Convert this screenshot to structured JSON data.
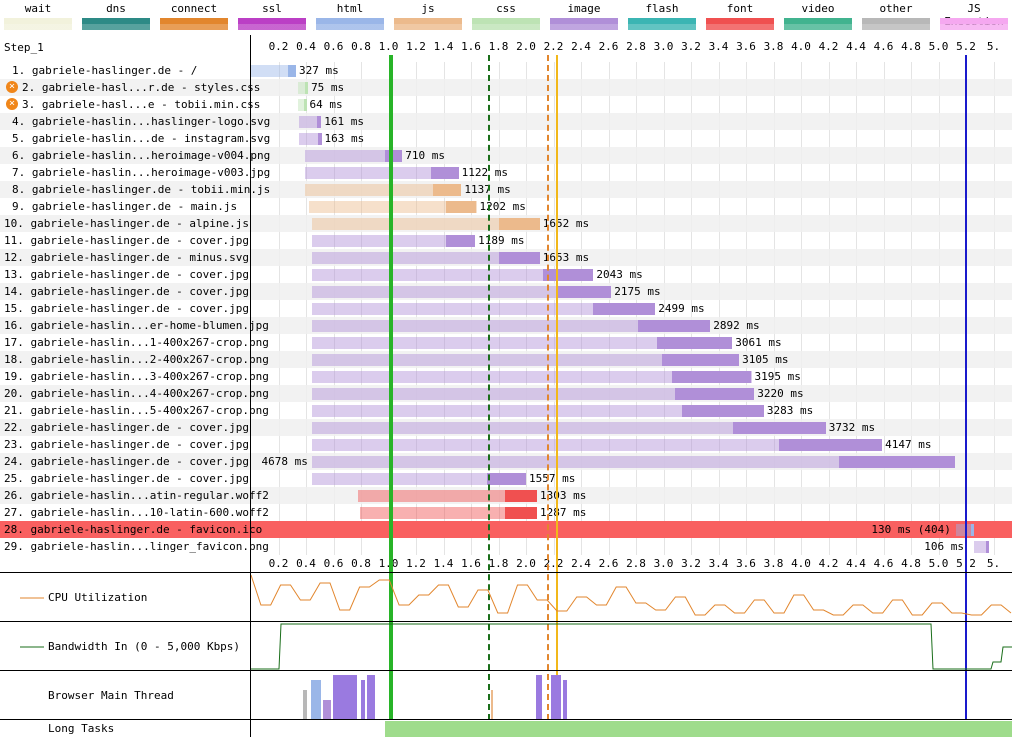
{
  "legend": [
    {
      "label": "wait",
      "color": "#f2f2dc"
    },
    {
      "label": "dns",
      "color": "#2d8a86"
    },
    {
      "label": "connect",
      "color": "#e2862d"
    },
    {
      "label": "ssl",
      "color": "#bb3fc5"
    },
    {
      "label": "html",
      "color": "#9ab6e8"
    },
    {
      "label": "js",
      "color": "#ecba8c"
    },
    {
      "label": "css",
      "color": "#bde3b4"
    },
    {
      "label": "image",
      "color": "#b08fd8"
    },
    {
      "label": "flash",
      "color": "#3bb5b3"
    },
    {
      "label": "font",
      "color": "#f05050"
    },
    {
      "label": "video",
      "color": "#41b38f"
    },
    {
      "label": "other",
      "color": "#b8b8b8"
    },
    {
      "label": "JS Execution",
      "color": "#f5a8f0"
    }
  ],
  "step_label": "Step_1",
  "ticks": [
    "0.2",
    "0.4",
    "0.6",
    "0.8",
    "1.0",
    "1.2",
    "1.4",
    "1.6",
    "1.8",
    "2.0",
    "2.2",
    "2.4",
    "2.6",
    "2.8",
    "3.0",
    "3.2",
    "3.4",
    "3.6",
    "3.8",
    "4.0",
    "4.2",
    "4.4",
    "4.6",
    "4.8",
    "5.0",
    "5.2",
    "5."
  ],
  "requests": [
    {
      "label": "1. gabriele-haslinger.de - /",
      "time": "327 ms",
      "type": "html",
      "start": 0.0,
      "end": 0.327
    },
    {
      "label": "2. gabriele-hasl...r.de - styles.css",
      "time": "75 ms",
      "type": "css",
      "start": 0.34,
      "end": 0.415,
      "error": true
    },
    {
      "label": "3. gabriele-hasl...e - tobii.min.css",
      "time": "64 ms",
      "type": "css",
      "start": 0.34,
      "end": 0.404,
      "error": true
    },
    {
      "label": "4. gabriele-haslin...haslinger-logo.svg",
      "time": "161 ms",
      "type": "image",
      "start": 0.35,
      "end": 0.511
    },
    {
      "label": "5. gabriele-haslin...de - instagram.svg",
      "time": "163 ms",
      "type": "image",
      "start": 0.35,
      "end": 0.513
    },
    {
      "label": "6. gabriele-haslin...heroimage-v004.png",
      "time": "710 ms",
      "type": "image",
      "start": 0.39,
      "end": 1.1
    },
    {
      "label": "7. gabriele-haslin...heroimage-v003.jpg",
      "time": "1122 ms",
      "type": "image",
      "start": 0.39,
      "end": 1.51
    },
    {
      "label": "8. gabriele-haslinger.de - tobii.min.js",
      "time": "1137 ms",
      "type": "js",
      "start": 0.39,
      "end": 1.53
    },
    {
      "label": "9. gabriele-haslinger.de - main.js",
      "time": "1202 ms",
      "type": "js",
      "start": 0.42,
      "end": 1.64
    },
    {
      "label": "10. gabriele-haslinger.de - alpine.js",
      "time": "1652 ms",
      "type": "js",
      "start": 0.44,
      "end": 2.1
    },
    {
      "label": "11. gabriele-haslinger.de - cover.jpg",
      "time": "1189 ms",
      "type": "image",
      "start": 0.44,
      "end": 1.63
    },
    {
      "label": "12. gabriele-haslinger.de - minus.svg",
      "time": "1653 ms",
      "type": "image",
      "start": 0.44,
      "end": 2.1
    },
    {
      "label": "13. gabriele-haslinger.de - cover.jpg",
      "time": "2043 ms",
      "type": "image",
      "start": 0.44,
      "end": 2.49
    },
    {
      "label": "14. gabriele-haslinger.de - cover.jpg",
      "time": "2175 ms",
      "type": "image",
      "start": 0.44,
      "end": 2.62
    },
    {
      "label": "15. gabriele-haslinger.de - cover.jpg",
      "time": "2499 ms",
      "type": "image",
      "start": 0.44,
      "end": 2.94
    },
    {
      "label": "16. gabriele-haslin...er-home-blumen.jpg",
      "time": "2892 ms",
      "type": "image",
      "start": 0.44,
      "end": 3.34
    },
    {
      "label": "17. gabriele-haslin...1-400x267-crop.png",
      "time": "3061 ms",
      "type": "image",
      "start": 0.44,
      "end": 3.5
    },
    {
      "label": "18. gabriele-haslin...2-400x267-crop.png",
      "time": "3105 ms",
      "type": "image",
      "start": 0.44,
      "end": 3.55
    },
    {
      "label": "19. gabriele-haslin...3-400x267-crop.png",
      "time": "3195 ms",
      "type": "image",
      "start": 0.44,
      "end": 3.64
    },
    {
      "label": "20. gabriele-haslin...4-400x267-crop.png",
      "time": "3220 ms",
      "type": "image",
      "start": 0.44,
      "end": 3.66
    },
    {
      "label": "21. gabriele-haslin...5-400x267-crop.png",
      "time": "3283 ms",
      "type": "image",
      "start": 0.44,
      "end": 3.73
    },
    {
      "label": "22. gabriele-haslinger.de - cover.jpg",
      "time": "3732 ms",
      "type": "image",
      "start": 0.44,
      "end": 4.18
    },
    {
      "label": "23. gabriele-haslinger.de - cover.jpg",
      "time": "4147 ms",
      "type": "image",
      "start": 0.44,
      "end": 4.59
    },
    {
      "label": "24. gabriele-haslinger.de - cover.jpg",
      "time": "4678 ms",
      "type": "image",
      "start": 0.44,
      "end": 5.12
    },
    {
      "label": "25. gabriele-haslinger.de - cover.jpg",
      "time": "1557 ms",
      "type": "image",
      "start": 0.44,
      "end": 2.0
    },
    {
      "label": "26. gabriele-haslin...atin-regular.woff2",
      "time": "1303 ms",
      "type": "font",
      "start": 0.78,
      "end": 2.08
    },
    {
      "label": "27. gabriele-haslin...10-latin-600.woff2",
      "time": "1287 ms",
      "type": "font",
      "start": 0.79,
      "end": 2.08
    },
    {
      "label": "28. gabriele-haslinger.de - favicon.ico",
      "time": "130 ms (404)",
      "type": "html",
      "start": 5.13,
      "end": 5.26,
      "error_row": true
    },
    {
      "label": "29. gabriele-haslin...linger_favicon.png",
      "time": "106 ms",
      "type": "image",
      "start": 5.26,
      "end": 5.37
    }
  ],
  "graphs": {
    "cpu": "CPU Utilization",
    "bandwidth": "Bandwidth In (0 - 5,000 Kbps)",
    "main_thread": "Browser Main Thread",
    "long_tasks": "Long Tasks"
  }
}
